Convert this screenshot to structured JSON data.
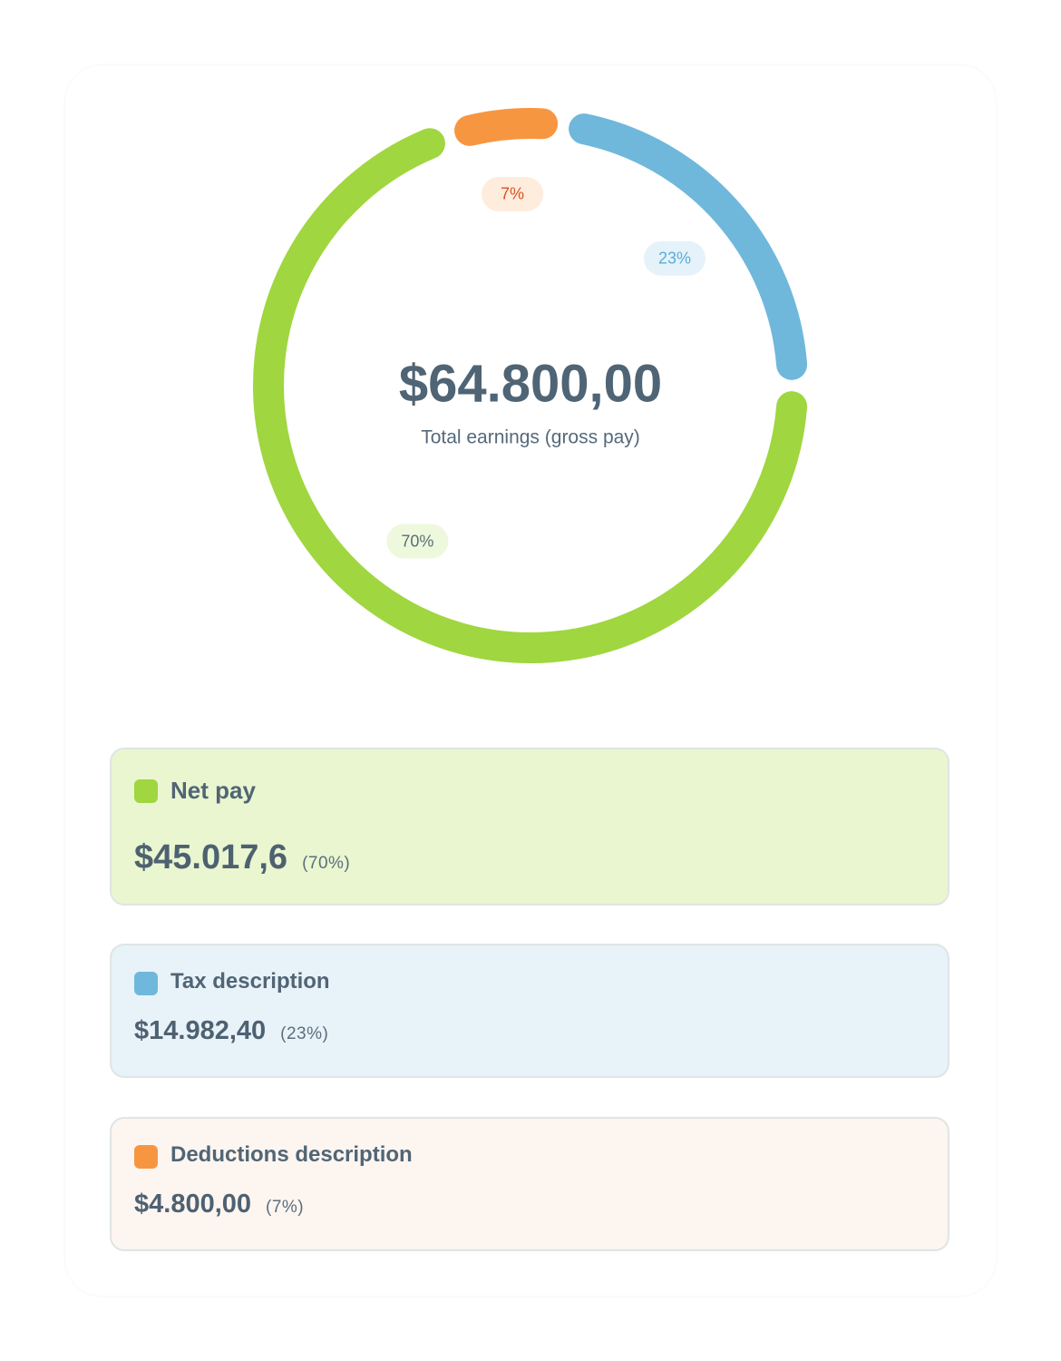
{
  "chart_data": {
    "type": "donut",
    "center_value": "$64.800,00",
    "center_label": "Total earnings (gross pay)",
    "categories": [
      "Net pay",
      "Tax description",
      "Deductions description"
    ],
    "values": [
      70,
      23,
      7
    ],
    "value_labels": [
      "70%",
      "23%",
      "7%"
    ],
    "colors": [
      "#a0d63f",
      "#6fb8db",
      "#f79641"
    ],
    "amounts": [
      "$45.017,6",
      "$14.982,40",
      "$4.800,00"
    ],
    "percent_labels": [
      "(70%)",
      "(23%)",
      "(7%)"
    ]
  }
}
